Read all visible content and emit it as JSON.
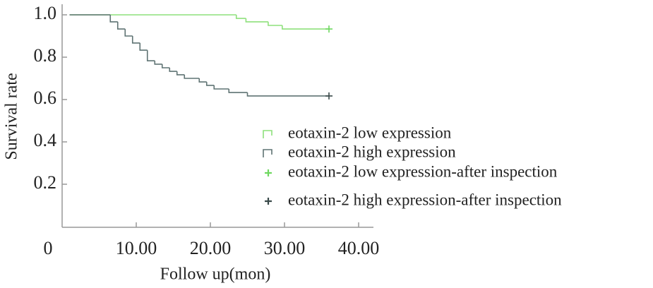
{
  "chart_data": {
    "type": "step",
    "x_label": "Follow up(mon)",
    "y_label": "Survival rate",
    "xlim": [
      0,
      42
    ],
    "ylim": [
      0,
      1.05
    ],
    "xticks": [
      0,
      {
        "value": 10,
        "label": "10.00"
      },
      {
        "value": 20,
        "label": "20.00"
      },
      {
        "value": 30,
        "label": "30.00"
      },
      {
        "value": 40,
        "label": "40.00"
      }
    ],
    "yticks": [
      0.2,
      0.4,
      0.6,
      0.8,
      {
        "value": 1,
        "label": "1.0"
      }
    ],
    "series": [
      {
        "name": "eotaxin-2 low expression",
        "color": "#8ee07c",
        "marker": "step",
        "x": [
          1,
          23.5,
          24.8,
          27.8,
          29.7,
          36
        ],
        "values": [
          1,
          0.983,
          0.967,
          0.95,
          0.933,
          0.933
        ]
      },
      {
        "name": "eotaxin-2 high expression",
        "color": "#5f7373",
        "marker": "step",
        "x": [
          1,
          6.5,
          7.5,
          8.5,
          9.5,
          10.5,
          11.5,
          12.5,
          13.5,
          14.5,
          15.5,
          16.5,
          18.5,
          19.5,
          20.5,
          22.5,
          25,
          36
        ],
        "values": [
          1,
          0.967,
          0.933,
          0.9,
          0.867,
          0.833,
          0.783,
          0.767,
          0.75,
          0.733,
          0.717,
          0.7,
          0.683,
          0.667,
          0.65,
          0.633,
          0.617,
          0.617
        ]
      },
      {
        "name": "eotaxin-2 low expression-after inspection",
        "color": "#6fd860",
        "marker": "plus",
        "x": [
          36
        ],
        "values": [
          0.933
        ]
      },
      {
        "name": "eotaxin-2 high expression-after inspection",
        "color": "#3a4a4a",
        "marker": "plus",
        "x": [
          36
        ],
        "values": [
          0.617
        ]
      }
    ]
  }
}
